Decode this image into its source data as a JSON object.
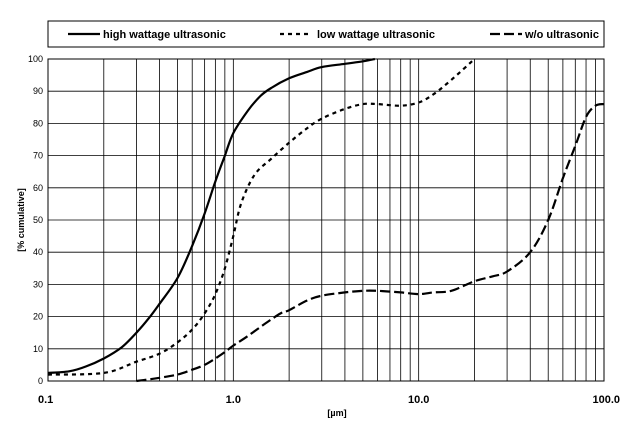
{
  "chart_data": {
    "type": "line",
    "xscale": "log",
    "xlim": [
      0.1,
      100
    ],
    "ylim": [
      0,
      100
    ],
    "xlabel": "[µm]",
    "ylabel": "[% cumulative]",
    "xticks": [
      "0.1",
      "1.0",
      "10.0",
      "100.0"
    ],
    "yticks": [
      "0",
      "10",
      "20",
      "30",
      "40",
      "50",
      "60",
      "70",
      "80",
      "90",
      "100"
    ],
    "grid": true,
    "legend_position": "top",
    "series": [
      {
        "name": "high wattage ultrasonic",
        "style": "solid",
        "x": [
          0.1,
          0.13,
          0.16,
          0.2,
          0.25,
          0.3,
          0.35,
          0.4,
          0.5,
          0.6,
          0.7,
          0.8,
          0.9,
          1.0,
          1.2,
          1.4,
          1.6,
          2.0,
          2.5,
          3.0,
          4.0,
          5.0,
          5.8
        ],
        "y": [
          2.5,
          3,
          4.5,
          7,
          10.5,
          15,
          19.5,
          24,
          32,
          42,
          52,
          62,
          70,
          77,
          84,
          88.5,
          91,
          94,
          96,
          97.5,
          98.5,
          99.3,
          100
        ]
      },
      {
        "name": "low wattage ultrasonic",
        "style": "dashed",
        "x": [
          0.1,
          0.2,
          0.3,
          0.4,
          0.5,
          0.6,
          0.7,
          0.8,
          0.9,
          1.0,
          1.1,
          1.3,
          1.6,
          2.0,
          2.5,
          3.0,
          4.0,
          5.0,
          6.0,
          8.0,
          10.0,
          12.0,
          15.0,
          20.0
        ],
        "y": [
          2,
          2.5,
          6,
          8.5,
          12,
          16,
          21,
          27,
          35,
          45,
          55,
          64,
          69,
          74,
          78.5,
          81.5,
          84.5,
          86,
          86,
          85.5,
          86.5,
          89,
          93.5,
          100
        ]
      },
      {
        "name": "w/o ultrasonic",
        "style": "longdash",
        "x": [
          0.3,
          0.35,
          0.4,
          0.5,
          0.6,
          0.7,
          0.8,
          0.9,
          1.0,
          1.2,
          1.5,
          1.8,
          2.0,
          2.5,
          3.0,
          4.0,
          5.0,
          6.0,
          8.0,
          10.0,
          12.0,
          15.0,
          20.0,
          25.0,
          30.0,
          40.0,
          50.0,
          60.0,
          70.0,
          80.0,
          90.0,
          100.0
        ],
        "y": [
          0,
          0.5,
          1,
          2,
          3.5,
          5,
          7,
          9,
          11,
          14,
          18,
          21,
          22,
          25,
          26.5,
          27.5,
          28,
          28,
          27.5,
          27,
          27.5,
          28,
          31,
          32.5,
          34,
          40,
          50,
          63,
          73,
          82,
          85.5,
          86
        ]
      }
    ]
  }
}
